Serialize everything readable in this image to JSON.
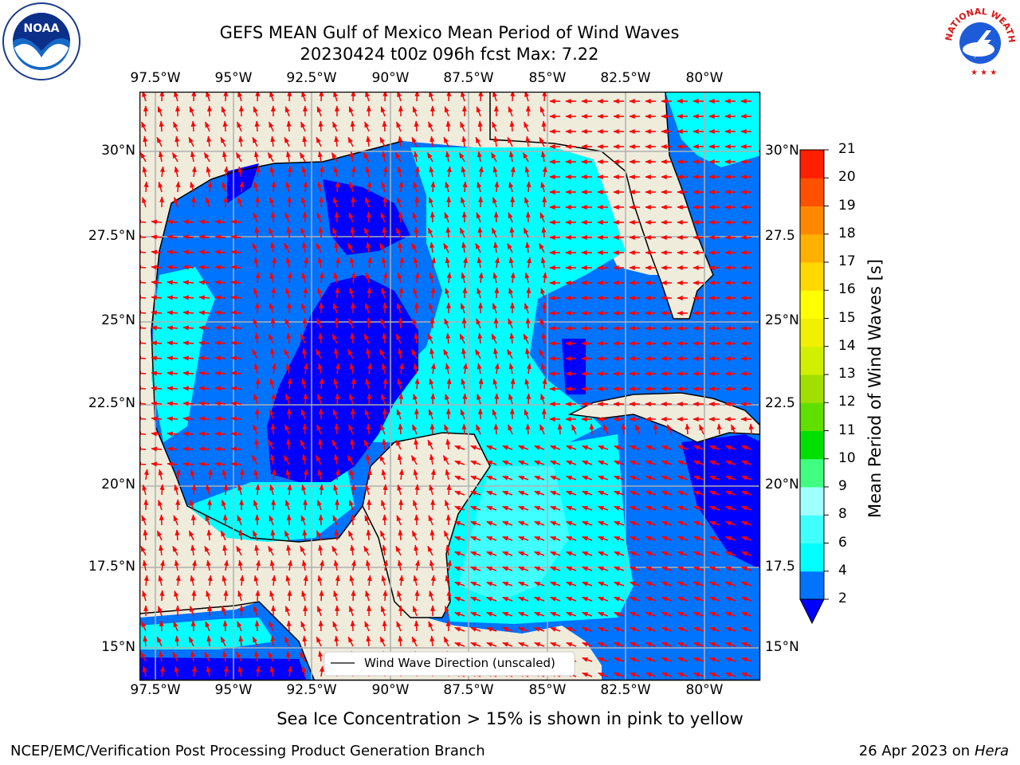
{
  "header": {
    "title_line1": "GEFS MEAN Gulf of Mexico Mean Period of Wind Waves",
    "title_line2": "20230424 t00z 096h fcst   Max: 7.22"
  },
  "logos": {
    "left": "NOAA",
    "left_ring": "NATIONAL OCEANIC AND ATMOSPHERIC ADMINISTRATION · U.S. DEPARTMENT OF COMMERCE",
    "right_ring": "NATIONAL WEATHER SERVICE"
  },
  "map": {
    "lon_labels": [
      "97.5°W",
      "95°W",
      "92.5°W",
      "90°W",
      "87.5°W",
      "85°W",
      "82.5°W",
      "80°W"
    ],
    "lat_labels_left": [
      "30°N",
      "27.5°N",
      "25°N",
      "22.5°N",
      "20°N",
      "17.5°N",
      "15°N"
    ],
    "lat_labels_right": [
      "30°N",
      "27.5",
      "25°N",
      "22.5",
      "20°N",
      "17.5",
      "15°N"
    ],
    "legend_label": "Wind Wave Direction (unscaled)",
    "colors": {
      "land": "#efecdc",
      "water_2": "#0073ff",
      "water_4": "#00ffff",
      "water_6": "#40ffff",
      "water_lt2": "#0000ff",
      "arrows": "#ff0000"
    }
  },
  "colorbar": {
    "label": "Mean Period of Wind Waves [s]",
    "ticks": [
      "2",
      "4",
      "6",
      "8",
      "9",
      "10",
      "11",
      "12",
      "13",
      "14",
      "15",
      "16",
      "17",
      "18",
      "19",
      "20",
      "21"
    ],
    "colors": [
      "#0073ff",
      "#00ffff",
      "#40ffff",
      "#a0ffff",
      "#40ff80",
      "#00e000",
      "#60e000",
      "#a0e000",
      "#d0f000",
      "#f0f000",
      "#ffff00",
      "#ffd800",
      "#ffb000",
      "#ff8800",
      "#ff5000",
      "#ff2000",
      "#ff0000"
    ],
    "under_color": "#0000ff"
  },
  "footer": {
    "note": "Sea Ice Concentration > 15% is shown in pink to yellow",
    "credit": "NCEP/EMC/Verification Post Processing Product Generation Branch",
    "date": "26 Apr 2023 on ",
    "machine": "Hera"
  }
}
